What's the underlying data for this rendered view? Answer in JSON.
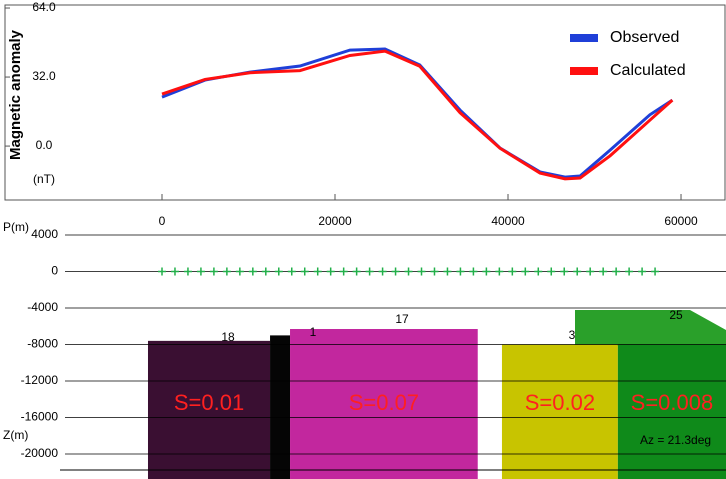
{
  "chart_data": [
    {
      "type": "line",
      "y_label": "Magnetic anomaly",
      "y_unit": "(nT)",
      "xlim": [
        -18150,
        65200
      ],
      "xticks": [
        0,
        20000,
        40000,
        60000
      ],
      "ylim": [
        -25,
        65.4
      ],
      "yticks": [
        {
          "value": 64,
          "label": "64.0"
        },
        {
          "value": 32,
          "label": "32.0"
        },
        {
          "value": 0,
          "label": "0.0"
        }
      ],
      "legend": "top-right",
      "series": [
        {
          "name": "Observed",
          "color": "#1f3fd8",
          "x": [
            0,
            4970,
            10170,
            15950,
            21730,
            25780,
            29800,
            34450,
            39070,
            43700,
            46590,
            48330,
            51800,
            56400,
            59000
          ],
          "values": [
            22.7,
            30.6,
            34.3,
            37.1,
            44.5,
            45,
            37.6,
            16.7,
            -0.9,
            -12,
            -14.4,
            -13.9,
            -1.9,
            14.5,
            21.3
          ]
        },
        {
          "name": "Calculated",
          "color": "#ff1010",
          "x": [
            0,
            4970,
            10170,
            15950,
            21730,
            25780,
            29800,
            34450,
            39070,
            43700,
            46590,
            48330,
            51800,
            56400,
            59000
          ],
          "values": [
            24.1,
            30.9,
            34.0,
            35.0,
            42.0,
            44.0,
            37.0,
            15.5,
            -1.0,
            -12.5,
            -15.2,
            -14.8,
            -4.5,
            12.0,
            21.3
          ]
        }
      ]
    },
    {
      "type": "section",
      "x_label": "P(m)",
      "y_label": "Z(m)",
      "xlim": [
        -18150,
        65200
      ],
      "ylim": [
        -22740,
        4770
      ],
      "yticks": [
        4000,
        0,
        -4000,
        -8000,
        -12000,
        -16000,
        -20000
      ],
      "station_color": "#22b04a",
      "stations": [
        0,
        1500,
        3000,
        4500,
        6000,
        7500,
        9000,
        10500,
        12000,
        13500,
        15000,
        16500,
        18000,
        19500,
        21000,
        22500,
        24000,
        25500,
        27000,
        28500,
        30000,
        31500,
        33000,
        34500,
        36000,
        37500,
        39000,
        40500,
        42000,
        43500,
        45000,
        46500,
        48000,
        49500,
        51000,
        52500,
        54000,
        55500,
        57000
      ],
      "blocks": [
        {
          "label": "S=0.01",
          "x": [
            -1620,
            12490
          ],
          "top": -7600,
          "color": "#3a0f32"
        },
        {
          "x": [
            12490,
            14800
          ],
          "top": -7000,
          "color": "#050505"
        },
        {
          "label": "S=0.07",
          "x": [
            14800,
            36500
          ],
          "top": -6300,
          "color": "#c2279e"
        },
        {
          "label": "S=0.02",
          "x": [
            39300,
            52700
          ],
          "top": -8000,
          "color": "#c8c400"
        },
        {
          "label": "S=0.008",
          "x": [
            52700,
            65200
          ],
          "top": -8000,
          "color": "#0f8a1a"
        }
      ],
      "annotations": [
        "18",
        "1",
        "17",
        "3",
        "25",
        "Az = 21.3deg"
      ]
    }
  ]
}
